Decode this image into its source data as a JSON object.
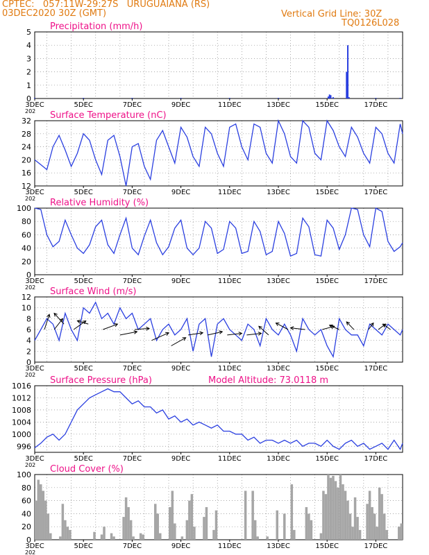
{
  "header": {
    "line1_left": "CPTEC:   057:11W-29:27S   URUGUAIANA (RS)",
    "line2_left": "03DEC2020 30Z (GMT)",
    "line1_right": "Vertical Grid Line: 30Z",
    "line2_right": "TQ0126L028"
  },
  "colors": {
    "header": "#e07a10",
    "title": "#ee1188",
    "series": "#2a3fe0",
    "cloud": "#a6a6a6",
    "axis": "#000000"
  },
  "chart_data": [
    {
      "type": "bar",
      "title": "Precipitation (mm/h)",
      "ylim": [
        0,
        5
      ],
      "yticks": [
        0,
        1,
        2,
        3,
        4,
        5
      ],
      "x_tick_labels": [
        "3DEC",
        "5DEC",
        "7DEC",
        "9DEC",
        "11DEC",
        "13DEC",
        "15DEC",
        "17DEC"
      ],
      "x_range_days": [
        3,
        18.1
      ],
      "series": [
        {
          "x": [
            3,
            5,
            7,
            9,
            11,
            13,
            15.05,
            15.1,
            15.15,
            15.25,
            15.8,
            15.85,
            15.9,
            17,
            18
          ],
          "y": [
            0.05,
            0.05,
            0.05,
            0.05,
            0.05,
            0.05,
            0.15,
            0.3,
            0.25,
            0.1,
            2.0,
            4.0,
            0.1,
            0.05,
            0.05
          ]
        }
      ]
    },
    {
      "type": "line",
      "title": "Surface Temperature (nC)",
      "ylim": [
        12,
        32
      ],
      "yticks": [
        12,
        16,
        20,
        24,
        28,
        32
      ],
      "x_tick_labels": [
        "3DEC",
        "5DEC",
        "7DEC",
        "9DEC",
        "11DEC",
        "13DEC",
        "15DEC",
        "17DEC"
      ],
      "x_range_days": [
        3,
        18.1
      ],
      "series": [
        {
          "x": [
            3,
            3.25,
            3.5,
            3.75,
            4,
            4.25,
            4.5,
            4.75,
            5,
            5.25,
            5.5,
            5.75,
            6,
            6.25,
            6.5,
            6.75,
            7,
            7.25,
            7.5,
            7.75,
            8,
            8.25,
            8.5,
            8.75,
            9,
            9.25,
            9.5,
            9.75,
            10,
            10.25,
            10.5,
            10.75,
            11,
            11.25,
            11.5,
            11.75,
            12,
            12.25,
            12.5,
            12.75,
            13,
            13.25,
            13.5,
            13.75,
            14,
            14.25,
            14.5,
            14.75,
            15,
            15.25,
            15.5,
            15.75,
            16,
            16.25,
            16.5,
            16.75,
            17,
            17.25,
            17.5,
            17.75,
            18,
            18.1
          ],
          "y": [
            20,
            18.5,
            17,
            24,
            27.5,
            23,
            18,
            22,
            28,
            26,
            20,
            15.5,
            26,
            27.5,
            21,
            12,
            24,
            25,
            18,
            14,
            26,
            29,
            24,
            19,
            30,
            27,
            21,
            18,
            30,
            28,
            22,
            18,
            30,
            31,
            24,
            20,
            31,
            30,
            22,
            19,
            32,
            28,
            21,
            19,
            32,
            30,
            22,
            20,
            32,
            29,
            24,
            21,
            30,
            27,
            22,
            19,
            30,
            28,
            22,
            19,
            31,
            28
          ]
        }
      ]
    },
    {
      "type": "line",
      "title": "Relative Humidity (%)",
      "ylim": [
        0,
        100
      ],
      "yticks": [
        0,
        20,
        40,
        60,
        80,
        100
      ],
      "x_tick_labels": [
        "3DEC",
        "5DEC",
        "7DEC",
        "9DEC",
        "11DEC",
        "13DEC",
        "15DEC",
        "17DEC"
      ],
      "x_range_days": [
        3,
        18.1
      ],
      "series": [
        {
          "x": [
            3,
            3.25,
            3.5,
            3.75,
            4,
            4.25,
            4.5,
            4.75,
            5,
            5.25,
            5.5,
            5.75,
            6,
            6.25,
            6.5,
            6.75,
            7,
            7.25,
            7.5,
            7.75,
            8,
            8.25,
            8.5,
            8.75,
            9,
            9.25,
            9.5,
            9.75,
            10,
            10.25,
            10.5,
            10.75,
            11,
            11.25,
            11.5,
            11.75,
            12,
            12.25,
            12.5,
            12.75,
            13,
            13.25,
            13.5,
            13.75,
            14,
            14.25,
            14.5,
            14.75,
            15,
            15.25,
            15.5,
            15.75,
            16,
            16.25,
            16.5,
            16.75,
            17,
            17.25,
            17.5,
            17.75,
            18,
            18.1
          ],
          "y": [
            100,
            98,
            60,
            42,
            50,
            82,
            60,
            40,
            32,
            45,
            72,
            82,
            45,
            32,
            60,
            85,
            40,
            30,
            58,
            82,
            48,
            30,
            42,
            70,
            82,
            40,
            30,
            40,
            80,
            70,
            32,
            38,
            80,
            70,
            32,
            35,
            80,
            65,
            30,
            35,
            80,
            62,
            28,
            32,
            85,
            72,
            30,
            28,
            82,
            70,
            38,
            60,
            100,
            98,
            60,
            42,
            100,
            95,
            50,
            35,
            42,
            48
          ]
        }
      ]
    },
    {
      "type": "line",
      "title": "Surface Wind (m/s)",
      "ylim": [
        0,
        12
      ],
      "yticks": [
        0,
        2,
        4,
        6,
        8,
        10,
        12
      ],
      "x_tick_labels": [
        "3DEC",
        "5DEC",
        "7DEC",
        "9DEC",
        "11DEC",
        "13DEC",
        "15DEC",
        "17DEC"
      ],
      "x_range_days": [
        3,
        18.1
      ],
      "series": [
        {
          "x": [
            3,
            3.25,
            3.5,
            3.75,
            4,
            4.25,
            4.5,
            4.75,
            5,
            5.25,
            5.5,
            5.75,
            6,
            6.25,
            6.5,
            6.75,
            7,
            7.25,
            7.5,
            7.75,
            8,
            8.25,
            8.5,
            8.75,
            9,
            9.25,
            9.5,
            9.75,
            10,
            10.25,
            10.5,
            10.75,
            11,
            11.25,
            11.5,
            11.75,
            12,
            12.25,
            12.5,
            12.75,
            13,
            13.25,
            13.5,
            13.75,
            14,
            14.25,
            14.5,
            14.75,
            15,
            15.25,
            15.5,
            15.75,
            16,
            16.25,
            16.5,
            16.75,
            17,
            17.25,
            17.5,
            17.75,
            18,
            18.1
          ],
          "y": [
            4,
            6,
            8,
            7,
            4,
            9,
            6,
            4,
            10,
            9,
            11,
            8,
            9,
            7,
            10,
            8,
            9,
            6,
            7,
            8,
            4,
            6,
            7,
            5,
            6,
            8,
            2,
            7,
            8,
            1,
            7,
            8,
            6,
            5,
            4,
            7,
            6,
            3,
            8,
            6,
            5,
            7,
            5,
            2,
            8,
            6,
            5,
            6,
            3,
            1,
            8,
            6,
            5,
            5,
            3,
            7,
            6,
            5,
            7,
            6,
            5,
            6
          ]
        }
      ],
      "wind_vectors": [
        {
          "x": 3.4,
          "y": 6,
          "dx": 0.2,
          "dy": 2.8
        },
        {
          "x": 3.8,
          "y": 6,
          "dx": 0.35,
          "dy": 2.0
        },
        {
          "x": 4.2,
          "y": 7,
          "dx": -0.4,
          "dy": 2.0
        },
        {
          "x": 4.6,
          "y": 6,
          "dx": 0.5,
          "dy": 1.6
        },
        {
          "x": 5.2,
          "y": 7,
          "dx": -0.45,
          "dy": 0.6
        },
        {
          "x": 5.8,
          "y": 6,
          "dx": 0.6,
          "dy": 1.0
        },
        {
          "x": 6.5,
          "y": 5,
          "dx": 0.7,
          "dy": 0.6
        },
        {
          "x": 7.1,
          "y": 6,
          "dx": 0.6,
          "dy": 0.2
        },
        {
          "x": 7.8,
          "y": 4,
          "dx": 0.7,
          "dy": 1.4
        },
        {
          "x": 8.6,
          "y": 3,
          "dx": 0.6,
          "dy": 1.5
        },
        {
          "x": 9.3,
          "y": 5,
          "dx": 0.6,
          "dy": 0.4
        },
        {
          "x": 10.1,
          "y": 5,
          "dx": 0.6,
          "dy": 0.6
        },
        {
          "x": 10.9,
          "y": 5,
          "dx": 0.6,
          "dy": 0.3
        },
        {
          "x": 11.7,
          "y": 5,
          "dx": 0.6,
          "dy": 0.3
        },
        {
          "x": 12.6,
          "y": 5,
          "dx": -0.4,
          "dy": 1.6
        },
        {
          "x": 13.4,
          "y": 6,
          "dx": -0.5,
          "dy": 1.2
        },
        {
          "x": 14.1,
          "y": 6,
          "dx": -0.6,
          "dy": 0.3
        },
        {
          "x": 14.8,
          "y": 6,
          "dx": 0.5,
          "dy": 0.6
        },
        {
          "x": 15.5,
          "y": 6,
          "dx": -0.4,
          "dy": 0.8
        },
        {
          "x": 16.1,
          "y": 6,
          "dx": -0.3,
          "dy": 1.4
        },
        {
          "x": 16.7,
          "y": 6,
          "dx": 0.2,
          "dy": 1.2
        },
        {
          "x": 17.1,
          "y": 6,
          "dx": 0.3,
          "dy": 1.0
        },
        {
          "x": 17.6,
          "y": 6,
          "dx": -0.3,
          "dy": 1.0
        }
      ]
    },
    {
      "type": "line",
      "title": "Surface Pressure (hPa)",
      "annotation": "Model Altitude: 73.0118  m",
      "ylim": [
        994,
        1016
      ],
      "yticks": [
        996,
        1000,
        1004,
        1008,
        1012,
        1016
      ],
      "x_tick_labels": [
        "3DEC",
        "5DEC",
        "7DEC",
        "9DEC",
        "11DEC",
        "13DEC",
        "15DEC",
        "17DEC"
      ],
      "x_range_days": [
        3,
        18.1
      ],
      "series": [
        {
          "x": [
            3,
            3.25,
            3.5,
            3.75,
            4,
            4.25,
            4.5,
            4.75,
            5,
            5.25,
            5.5,
            5.75,
            6,
            6.25,
            6.5,
            6.75,
            7,
            7.25,
            7.5,
            7.75,
            8,
            8.25,
            8.5,
            8.75,
            9,
            9.25,
            9.5,
            9.75,
            10,
            10.25,
            10.5,
            10.75,
            11,
            11.25,
            11.5,
            11.75,
            12,
            12.25,
            12.5,
            12.75,
            13,
            13.25,
            13.5,
            13.75,
            14,
            14.25,
            14.5,
            14.75,
            15,
            15.25,
            15.5,
            15.75,
            16,
            16.25,
            16.5,
            16.75,
            17,
            17.25,
            17.5,
            17.75,
            18,
            18.1
          ],
          "y": [
            995.5,
            997,
            999,
            1000,
            998,
            1000,
            1004,
            1008,
            1010,
            1012,
            1013,
            1014,
            1015,
            1014,
            1014,
            1012,
            1010,
            1011,
            1009,
            1009,
            1007,
            1008,
            1005,
            1006,
            1004,
            1005,
            1003,
            1004,
            1003,
            1002,
            1003,
            1001,
            1001,
            1000,
            1000,
            998,
            999,
            997,
            998,
            998,
            997,
            998,
            997,
            998,
            996,
            997,
            997,
            996,
            998,
            996,
            995,
            997,
            998,
            996,
            997,
            995,
            996,
            997,
            995,
            998,
            995,
            997
          ]
        }
      ]
    },
    {
      "type": "bar",
      "title": "Cloud Cover (%)",
      "ylim": [
        0,
        100
      ],
      "yticks": [
        0,
        20,
        40,
        60,
        80,
        100
      ],
      "x_tick_labels": [
        "3DEC",
        "5DEC",
        "7DEC",
        "9DEC",
        "11DEC",
        "13DEC",
        "15DEC",
        "17DEC"
      ],
      "x_range_days": [
        3,
        18.1
      ],
      "series": [
        {
          "x": [
            3.0,
            3.1,
            3.2,
            3.3,
            3.4,
            3.5,
            3.6,
            3.7,
            3.8,
            3.9,
            4.0,
            4.1,
            4.2,
            4.3,
            4.4,
            4.5,
            4.6,
            4.7,
            4.8,
            4.9,
            5.0,
            5.1,
            5.2,
            5.3,
            5.4,
            5.5,
            5.6,
            5.7,
            5.8,
            5.9,
            6.0,
            6.1,
            6.2,
            6.3,
            6.4,
            6.5,
            6.6,
            6.7,
            6.8,
            6.9,
            7.0,
            7.1,
            7.2,
            7.3,
            7.4,
            7.5,
            7.6,
            7.7,
            7.8,
            7.9,
            8.0,
            8.1,
            8.2,
            8.3,
            8.4,
            8.5,
            8.6,
            8.7,
            8.8,
            8.9,
            9.0,
            9.1,
            9.2,
            9.3,
            9.4,
            9.5,
            9.6,
            9.7,
            9.8,
            9.9,
            10.0,
            10.1,
            10.2,
            10.3,
            10.4,
            10.5,
            10.6,
            10.7,
            10.8,
            10.9,
            11.0,
            11.1,
            11.2,
            11.3,
            11.4,
            11.5,
            11.6,
            11.7,
            11.8,
            11.9,
            12.0,
            12.1,
            12.2,
            12.3,
            12.4,
            12.5,
            12.6,
            12.7,
            12.8,
            12.9,
            13.0,
            13.1,
            13.2,
            13.3,
            13.4,
            13.5,
            13.6,
            13.7,
            13.8,
            13.9,
            14.0,
            14.1,
            14.2,
            14.3,
            14.4,
            14.5,
            14.6,
            14.7,
            14.8,
            14.9,
            15.0,
            15.1,
            15.2,
            15.3,
            15.4,
            15.5,
            15.6,
            15.7,
            15.8,
            15.9,
            16.0,
            16.1,
            16.2,
            16.3,
            16.4,
            16.5,
            16.6,
            16.7,
            16.8,
            16.9,
            17.0,
            17.1,
            17.2,
            17.3,
            17.4,
            17.5,
            17.6,
            17.7,
            17.8,
            17.9,
            18.0
          ],
          "y": [
            60,
            92,
            85,
            75,
            60,
            40,
            10,
            0,
            0,
            0,
            5,
            55,
            30,
            20,
            15,
            0,
            0,
            0,
            0,
            0,
            0,
            0,
            0,
            0,
            12,
            0,
            0,
            8,
            20,
            0,
            0,
            10,
            5,
            0,
            0,
            0,
            35,
            65,
            50,
            30,
            5,
            0,
            0,
            10,
            8,
            0,
            0,
            0,
            0,
            55,
            40,
            10,
            0,
            0,
            0,
            50,
            75,
            25,
            0,
            0,
            5,
            0,
            30,
            60,
            70,
            20,
            0,
            0,
            0,
            35,
            50,
            0,
            0,
            15,
            45,
            0,
            0,
            0,
            0,
            0,
            0,
            0,
            0,
            0,
            0,
            0,
            75,
            0,
            0,
            75,
            30,
            5,
            0,
            0,
            0,
            5,
            0,
            0,
            0,
            45,
            0,
            0,
            40,
            0,
            0,
            85,
            15,
            0,
            0,
            0,
            0,
            50,
            40,
            30,
            0,
            0,
            0,
            10,
            75,
            70,
            100,
            95,
            98,
            90,
            80,
            100,
            85,
            75,
            60,
            40,
            20,
            65,
            35,
            15,
            0,
            0,
            55,
            75,
            50,
            40,
            20,
            80,
            70,
            40,
            15,
            0,
            0,
            0,
            0,
            20,
            25
          ]
        }
      ]
    }
  ]
}
